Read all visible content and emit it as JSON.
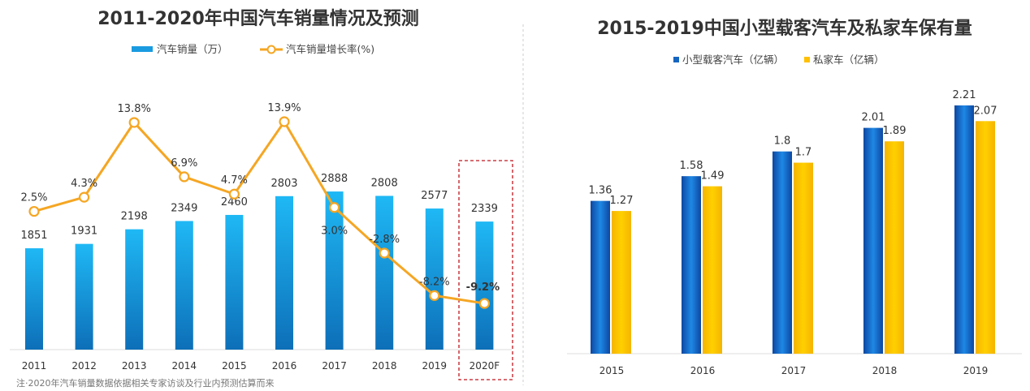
{
  "chart_data": [
    {
      "type": "bar+line",
      "title": "2011-2020年中国汽车销量情况及预测",
      "categories": [
        "2011",
        "2012",
        "2013",
        "2014",
        "2015",
        "2016",
        "2017",
        "2018",
        "2019",
        "2020F"
      ],
      "series": [
        {
          "name": "汽车销量（万）",
          "type": "bar",
          "color": "#1a9be0",
          "values": [
            1851,
            1931,
            2198,
            2349,
            2460,
            2803,
            2888,
            2808,
            2577,
            2339
          ]
        },
        {
          "name": "汽车销量增长率(%)",
          "type": "line",
          "color": "#f5a623",
          "values": [
            2.5,
            4.3,
            13.8,
            6.9,
            4.7,
            13.9,
            3.0,
            -2.8,
            -8.2,
            -9.2
          ],
          "labels": [
            "2.5%",
            "4.3%",
            "13.8%",
            "6.9%",
            "4.7%",
            "13.9%",
            "3.0%",
            "-2.8%",
            "-8.2%",
            "-9.2%"
          ]
        }
      ],
      "highlight": {
        "category": "2020F",
        "color": "#c0161d"
      },
      "note": "注·2020年汽车销量数据依据相关专家访谈及行业内预测估算而来"
    },
    {
      "type": "bar",
      "title": "2015-2019中国小型载客汽车及私家车保有量",
      "categories": [
        "2015",
        "2016",
        "2017",
        "2018",
        "2019"
      ],
      "series": [
        {
          "name": "小型载客汽车（亿辆）",
          "color": "#1565c0",
          "values": [
            1.36,
            1.58,
            1.8,
            2.01,
            2.21
          ],
          "labels": [
            "1.36",
            "1.58",
            "1.8",
            "2.01",
            "2.21"
          ]
        },
        {
          "name": "私家车（亿辆）",
          "color": "#ffc000",
          "values": [
            1.27,
            1.49,
            1.7,
            1.89,
            2.07
          ],
          "labels": [
            "1.27",
            "1.49",
            "1.7",
            "1.89",
            "2.07"
          ]
        }
      ]
    }
  ]
}
